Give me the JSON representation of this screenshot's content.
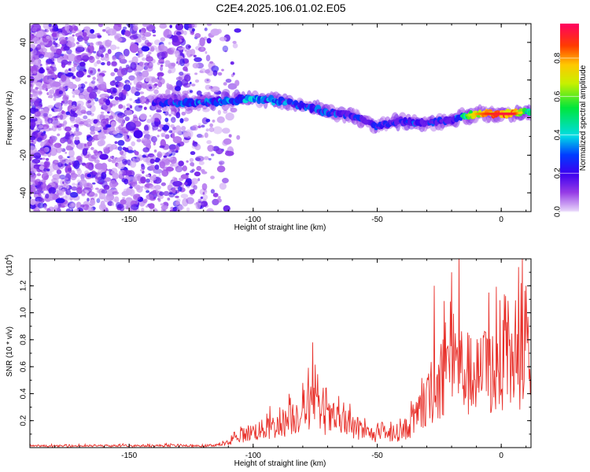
{
  "title": "C2E4.2025.106.01.02.E05",
  "chart_data": [
    {
      "type": "heatmap",
      "xlabel": "Height of straight line (km)",
      "ylabel": "Frequency (Hz)",
      "xlim": [
        -190,
        12
      ],
      "ylim": [
        -50,
        50
      ],
      "x_ticks": [
        -150,
        -100,
        -50,
        0
      ],
      "y_ticks": [
        -40,
        -20,
        0,
        20,
        40
      ],
      "colorbar": {
        "label": "Normalized spectral amplitude",
        "range": [
          0,
          0.98
        ],
        "ticks": [
          0.0,
          0.2,
          0.4,
          0.6,
          0.8
        ],
        "tick_labels": [
          "0.0",
          "0.2",
          "0.4",
          "0.6",
          "0.8"
        ]
      },
      "signal_track": {
        "x": [
          -140,
          -130,
          -120,
          -110,
          -100,
          -90,
          -80,
          -70,
          -60,
          -50,
          -45,
          -40,
          -35,
          -30,
          -25,
          -20,
          -15,
          -10,
          -5,
          0,
          5,
          10
        ],
        "frequency": [
          8,
          8,
          8,
          9,
          10,
          9,
          6,
          3,
          1,
          -5,
          -3,
          -2,
          -3,
          -3,
          -2,
          -1,
          1,
          2,
          2,
          2,
          2,
          3
        ],
        "amplitude": [
          0.3,
          0.35,
          0.4,
          0.45,
          0.45,
          0.4,
          0.35,
          0.35,
          0.35,
          0.3,
          0.25,
          0.3,
          0.35,
          0.35,
          0.3,
          0.3,
          0.55,
          0.8,
          0.9,
          0.95,
          0.95,
          0.6
        ]
      },
      "noise_region_x": [
        -190,
        -110
      ]
    },
    {
      "type": "line",
      "xlabel": "Height of straight line (km)",
      "ylabel": "SNR (10 * v/v)",
      "y_scale_label": "(x10",
      "y_scale_exp": "4",
      "xlim": [
        -190,
        12
      ],
      "ylim": [
        0,
        14000
      ],
      "x_ticks": [
        -150,
        -100,
        -50,
        0
      ],
      "y_ticks": [
        2000,
        4000,
        6000,
        8000,
        10000,
        12000
      ],
      "y_tick_labels": [
        "0.2",
        "0.4",
        "0.6",
        "0.8",
        "1.0",
        "1.2"
      ],
      "color": "#e8302a",
      "envelope": {
        "x": [
          -190,
          -130,
          -120,
          -110,
          -105,
          -100,
          -95,
          -90,
          -85,
          -80,
          -76,
          -72,
          -68,
          -65,
          -60,
          -55,
          -50,
          -45,
          -40,
          -35,
          -30,
          -28,
          -25,
          -22,
          -20,
          -18,
          -15,
          -12,
          -10,
          -8,
          -5,
          -2,
          0,
          3,
          6,
          9,
          12
        ],
        "y": [
          150,
          200,
          150,
          400,
          1200,
          1600,
          1800,
          2200,
          2800,
          3600,
          4200,
          3200,
          2600,
          2400,
          2000,
          1500,
          1200,
          1300,
          1600,
          2600,
          4200,
          5400,
          6500,
          7800,
          8600,
          8200,
          7500,
          7000,
          6800,
          7200,
          7600,
          7500,
          7800,
          8200,
          8600,
          9000,
          8600
        ]
      },
      "peaks": {
        "x": [
          -76,
          -17,
          -27,
          -20,
          -5,
          8,
          10
        ],
        "y": [
          7800,
          14000,
          12000,
          13000,
          11500,
          12200,
          12000
        ]
      }
    }
  ]
}
